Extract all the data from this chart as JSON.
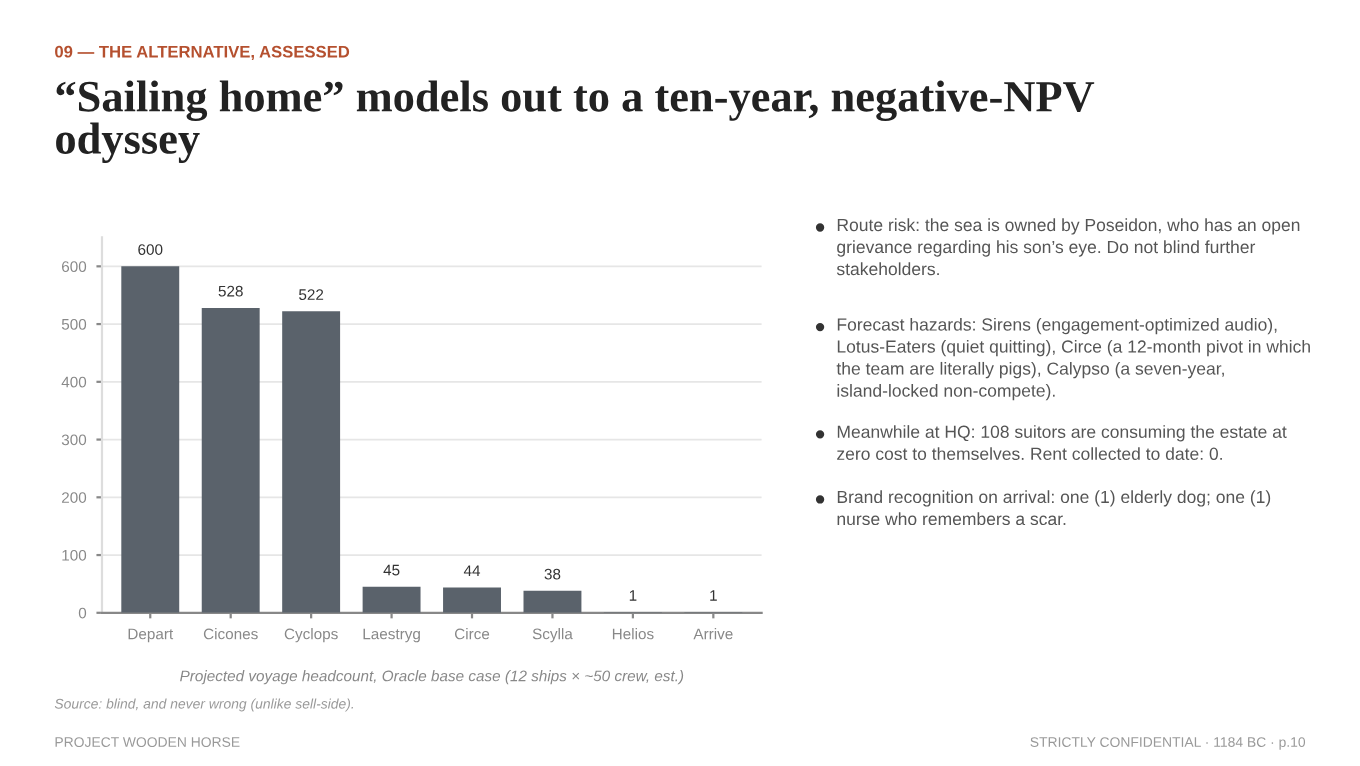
{
  "chart_data": {
    "type": "bar",
    "subtitle": "09 — THE ALTERNATIVE, ASSESSED",
    "title": "“Sailing home” models out to a ten-year, negative-NPV odyssey",
    "xlabel": "Projected voyage headcount, Oracle base case (12 ships × ~50 crew, est.)",
    "categories": [
      "Depart",
      "Cicones",
      "Cyclops",
      "Laestryg",
      "Circe",
      "Scylla",
      "Helios",
      "Arrive"
    ],
    "values": [
      600,
      528,
      522,
      45,
      44,
      38,
      1,
      1
    ],
    "color": "#5a626b",
    "ylim": [
      0,
      650
    ],
    "yticks": [
      0,
      100,
      200,
      300,
      400,
      500,
      600
    ],
    "grid": "y",
    "data_labels": true,
    "annotations": [
      "Route risk: the sea is owned by Poseidon, who has an open grievance regarding his son’s eye. Do not blind further stakeholders.",
      "Forecast hazards: Sirens (engagement-optimized audio), Lotus-Eaters (quiet quitting), Circe (a 12-month pivot in which the team are literally pigs), Calypso (a seven-year, island-locked non-compete).",
      "Meanwhile at HQ: 108 suitors are consuming the estate at zero cost to themselves. Rent collected to date: 0.",
      "Brand recognition on arrival: one (1) elderly dog; one (1) nurse who remembers a scar.",
      "Source: blind, and never wrong (unlike sell-side).",
      "PROJECT WOODEN HORSE",
      "STRICTLY CONFIDENTIAL · 1184 BC · p.10"
    ]
  }
}
